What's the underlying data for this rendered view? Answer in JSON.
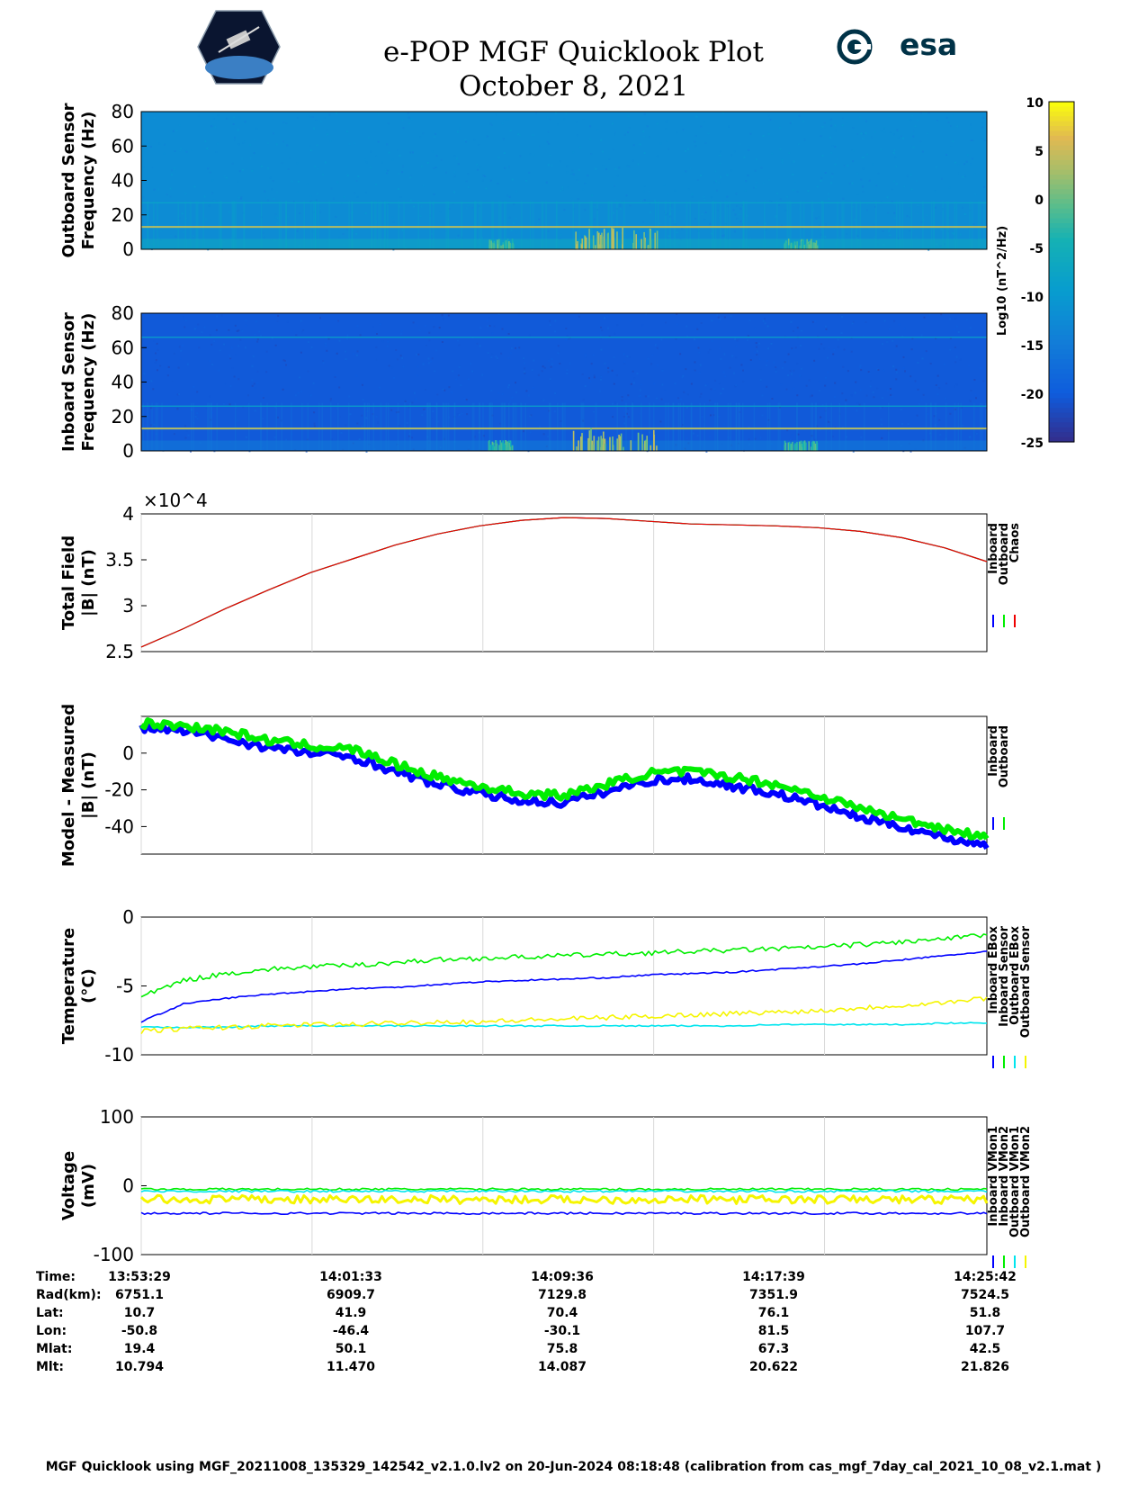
{
  "header": {
    "title_line1": "e-POP MGF Quicklook Plot",
    "title_line2": "October 8, 2021",
    "left_logo": "cassiope-logo",
    "right_logo": "esa-logo",
    "right_logo_text": "esa"
  },
  "colorbar": {
    "label": "Log10 (nT^2/Hz)",
    "ticks": [
      "10",
      "5",
      "0",
      "-5",
      "-10",
      "-15",
      "-20",
      "-25"
    ],
    "range": [
      -25,
      10
    ]
  },
  "chart_data": [
    {
      "id": "outboard-spectrogram",
      "type": "heatmap",
      "ylabel": [
        "Outboard Sensor",
        "Frequency (Hz)"
      ],
      "ylim": [
        0,
        80
      ],
      "yticks": [
        "80",
        "60",
        "40",
        "20",
        "0"
      ],
      "background_level": -12,
      "tone_lines_hz": [
        13,
        27
      ],
      "bursts": [
        {
          "time_fraction": [
            0.41,
            0.44
          ],
          "level": 0
        },
        {
          "time_fraction": [
            0.51,
            0.61
          ],
          "level": 5
        },
        {
          "time_fraction": [
            0.76,
            0.8
          ],
          "level": 0
        }
      ]
    },
    {
      "id": "inboard-spectrogram",
      "type": "heatmap",
      "ylabel": [
        "Inboard Sensor",
        "Frequency (Hz)"
      ],
      "ylim": [
        0,
        80
      ],
      "yticks": [
        "80",
        "60",
        "40",
        "20",
        "0"
      ],
      "background_level": -20,
      "tone_lines_hz": [
        13,
        26,
        66
      ],
      "bursts": [
        {
          "time_fraction": [
            0.41,
            0.44
          ],
          "level": 0
        },
        {
          "time_fraction": [
            0.51,
            0.61
          ],
          "level": 5
        },
        {
          "time_fraction": [
            0.76,
            0.8
          ],
          "level": 0
        }
      ]
    },
    {
      "id": "total-field",
      "type": "line",
      "ylabel": [
        "Total Field",
        "|B| (nT)"
      ],
      "ylim": [
        25000,
        40000
      ],
      "yticks": [
        "4",
        "3.5",
        "3",
        "2.5"
      ],
      "exponent_label": "×10^4",
      "grid": true,
      "x": [
        0,
        0.05,
        0.1,
        0.15,
        0.2,
        0.25,
        0.3,
        0.35,
        0.4,
        0.45,
        0.5,
        0.55,
        0.6,
        0.65,
        0.7,
        0.75,
        0.8,
        0.85,
        0.9,
        0.95,
        1.0
      ],
      "series": [
        {
          "name": "Inboard",
          "color": "#0000ff",
          "values": [
            25500,
            27500,
            29700,
            31700,
            33600,
            35100,
            36600,
            37800,
            38700,
            39300,
            39600,
            39500,
            39200,
            38900,
            38800,
            38700,
            38500,
            38100,
            37400,
            36300,
            34800
          ]
        },
        {
          "name": "Outboard",
          "color": "#00ee00",
          "values": [
            25500,
            27500,
            29700,
            31700,
            33600,
            35100,
            36600,
            37800,
            38700,
            39300,
            39600,
            39500,
            39200,
            38900,
            38800,
            38700,
            38500,
            38100,
            37400,
            36300,
            34800
          ]
        },
        {
          "name": "Chaos",
          "color": "#ee0000",
          "values": [
            25500,
            27500,
            29700,
            31700,
            33600,
            35100,
            36600,
            37800,
            38700,
            39300,
            39600,
            39500,
            39200,
            38900,
            38800,
            38700,
            38500,
            38100,
            37400,
            36300,
            34800
          ]
        }
      ],
      "legend": [
        "Inboard",
        "Outboard",
        "Chaos"
      ]
    },
    {
      "id": "model-minus-measured",
      "type": "line",
      "ylabel": [
        "Model - Measured",
        "|B| (nT)"
      ],
      "ylim": [
        -55,
        20
      ],
      "yticks": [
        "0",
        "-20",
        "-40"
      ],
      "ytick_values": [
        0,
        -20,
        -40
      ],
      "grid": true,
      "x": [
        0,
        0.05,
        0.1,
        0.15,
        0.2,
        0.25,
        0.3,
        0.35,
        0.4,
        0.45,
        0.5,
        0.55,
        0.6,
        0.65,
        0.7,
        0.75,
        0.8,
        0.85,
        0.9,
        0.95,
        1.0
      ],
      "series": [
        {
          "name": "Inboard",
          "color": "#0000ff",
          "values": [
            14,
            12,
            8,
            3,
            0,
            -2,
            -10,
            -17,
            -22,
            -26,
            -27,
            -21,
            -15,
            -14,
            -18,
            -22,
            -28,
            -35,
            -40,
            -46,
            -50
          ]
        },
        {
          "name": "Outboard",
          "color": "#00ee00",
          "values": [
            16,
            15,
            12,
            7,
            4,
            2,
            -6,
            -13,
            -18,
            -22,
            -23,
            -17,
            -11,
            -10,
            -13,
            -17,
            -23,
            -30,
            -36,
            -41,
            -46
          ]
        }
      ],
      "legend": [
        "Inboard",
        "Outboard"
      ]
    },
    {
      "id": "temperature",
      "type": "line",
      "ylabel": [
        "Temperature",
        "(°C)"
      ],
      "ylim": [
        -10,
        0
      ],
      "yticks": [
        "0",
        "-5",
        "-10"
      ],
      "ytick_values": [
        0,
        -5,
        -10
      ],
      "grid": true,
      "x": [
        0,
        0.05,
        0.1,
        0.15,
        0.2,
        0.25,
        0.3,
        0.35,
        0.4,
        0.45,
        0.5,
        0.55,
        0.6,
        0.65,
        0.7,
        0.75,
        0.8,
        0.85,
        0.9,
        0.95,
        1.0
      ],
      "series": [
        {
          "name": "Inboard EBox",
          "color": "#0000ff",
          "values": [
            -7.6,
            -6.3,
            -5.9,
            -5.6,
            -5.4,
            -5.2,
            -5.1,
            -4.9,
            -4.7,
            -4.6,
            -4.5,
            -4.4,
            -4.2,
            -4.1,
            -4.0,
            -3.8,
            -3.6,
            -3.4,
            -3.1,
            -2.8,
            -2.5
          ]
        },
        {
          "name": "Inboard Sensor",
          "color": "#00ee00",
          "values": [
            -5.8,
            -4.6,
            -4.1,
            -3.8,
            -3.6,
            -3.5,
            -3.3,
            -3.1,
            -3.0,
            -2.9,
            -2.8,
            -2.7,
            -2.6,
            -2.5,
            -2.4,
            -2.3,
            -2.2,
            -2.0,
            -1.8,
            -1.6,
            -1.3
          ]
        },
        {
          "name": "Outboard EBox",
          "color": "#00e5ee",
          "values": [
            -8.0,
            -8.0,
            -8.0,
            -7.9,
            -7.9,
            -7.9,
            -7.9,
            -7.9,
            -7.9,
            -7.9,
            -7.9,
            -7.9,
            -7.9,
            -7.9,
            -7.9,
            -7.8,
            -7.8,
            -7.8,
            -7.8,
            -7.7,
            -7.7
          ]
        },
        {
          "name": "Outboard Sensor",
          "color": "#f5f500",
          "values": [
            -8.3,
            -8.1,
            -8.0,
            -7.9,
            -7.8,
            -7.8,
            -7.7,
            -7.6,
            -7.6,
            -7.5,
            -7.4,
            -7.3,
            -7.2,
            -7.1,
            -7.0,
            -6.9,
            -6.8,
            -6.6,
            -6.4,
            -6.2,
            -5.9
          ]
        }
      ],
      "legend": [
        "Inboard EBox",
        "Inboard Sensor",
        "Outboard EBox",
        "Outboard Sensor"
      ]
    },
    {
      "id": "voltage",
      "type": "line",
      "ylabel": [
        "Voltage",
        "(mV)"
      ],
      "ylim": [
        -100,
        100
      ],
      "yticks": [
        "100",
        "0",
        "-100"
      ],
      "ytick_values": [
        100,
        0,
        -100
      ],
      "grid": true,
      "x": [
        0,
        1
      ],
      "series": [
        {
          "name": "Inboard VMon1",
          "color": "#0000ff",
          "values": [
            -40,
            -40
          ]
        },
        {
          "name": "Inboard VMon2",
          "color": "#00ee00",
          "values": [
            -5,
            -5
          ]
        },
        {
          "name": "Outboard VMon1",
          "color": "#00e5ee",
          "values": [
            -8,
            -8
          ]
        },
        {
          "name": "Outboard VMon2",
          "color": "#f5f500",
          "values": [
            -20,
            -20
          ]
        }
      ],
      "legend": [
        "Inboard VMon1",
        "Inboard VMon2",
        "Outboard VMon1",
        "Outboard VMon2"
      ]
    }
  ],
  "ephemeris": {
    "row_labels": [
      "Time:",
      "Rad(km):",
      "Lat:",
      "Lon:",
      "Mlat:",
      "Mlt:"
    ],
    "columns": [
      [
        "13:53:29",
        "6751.1",
        "10.7",
        "-50.8",
        "19.4",
        "10.794"
      ],
      [
        "14:01:33",
        "6909.7",
        "41.9",
        "-46.4",
        "50.1",
        "11.470"
      ],
      [
        "14:09:36",
        "7129.8",
        "70.4",
        "-30.1",
        "75.8",
        "14.087"
      ],
      [
        "14:17:39",
        "7351.9",
        "76.1",
        "81.5",
        "67.3",
        "20.622"
      ],
      [
        "14:25:42",
        "7524.5",
        "51.8",
        "107.7",
        "42.5",
        "21.826"
      ]
    ]
  },
  "footer": "MGF Quicklook using MGF_20211008_135329_142542_v2.1.0.lv2 on 20-Jun-2024 08:18:48 (calibration from cas_mgf_7day_cal_2021_10_08_v2.1.mat )"
}
